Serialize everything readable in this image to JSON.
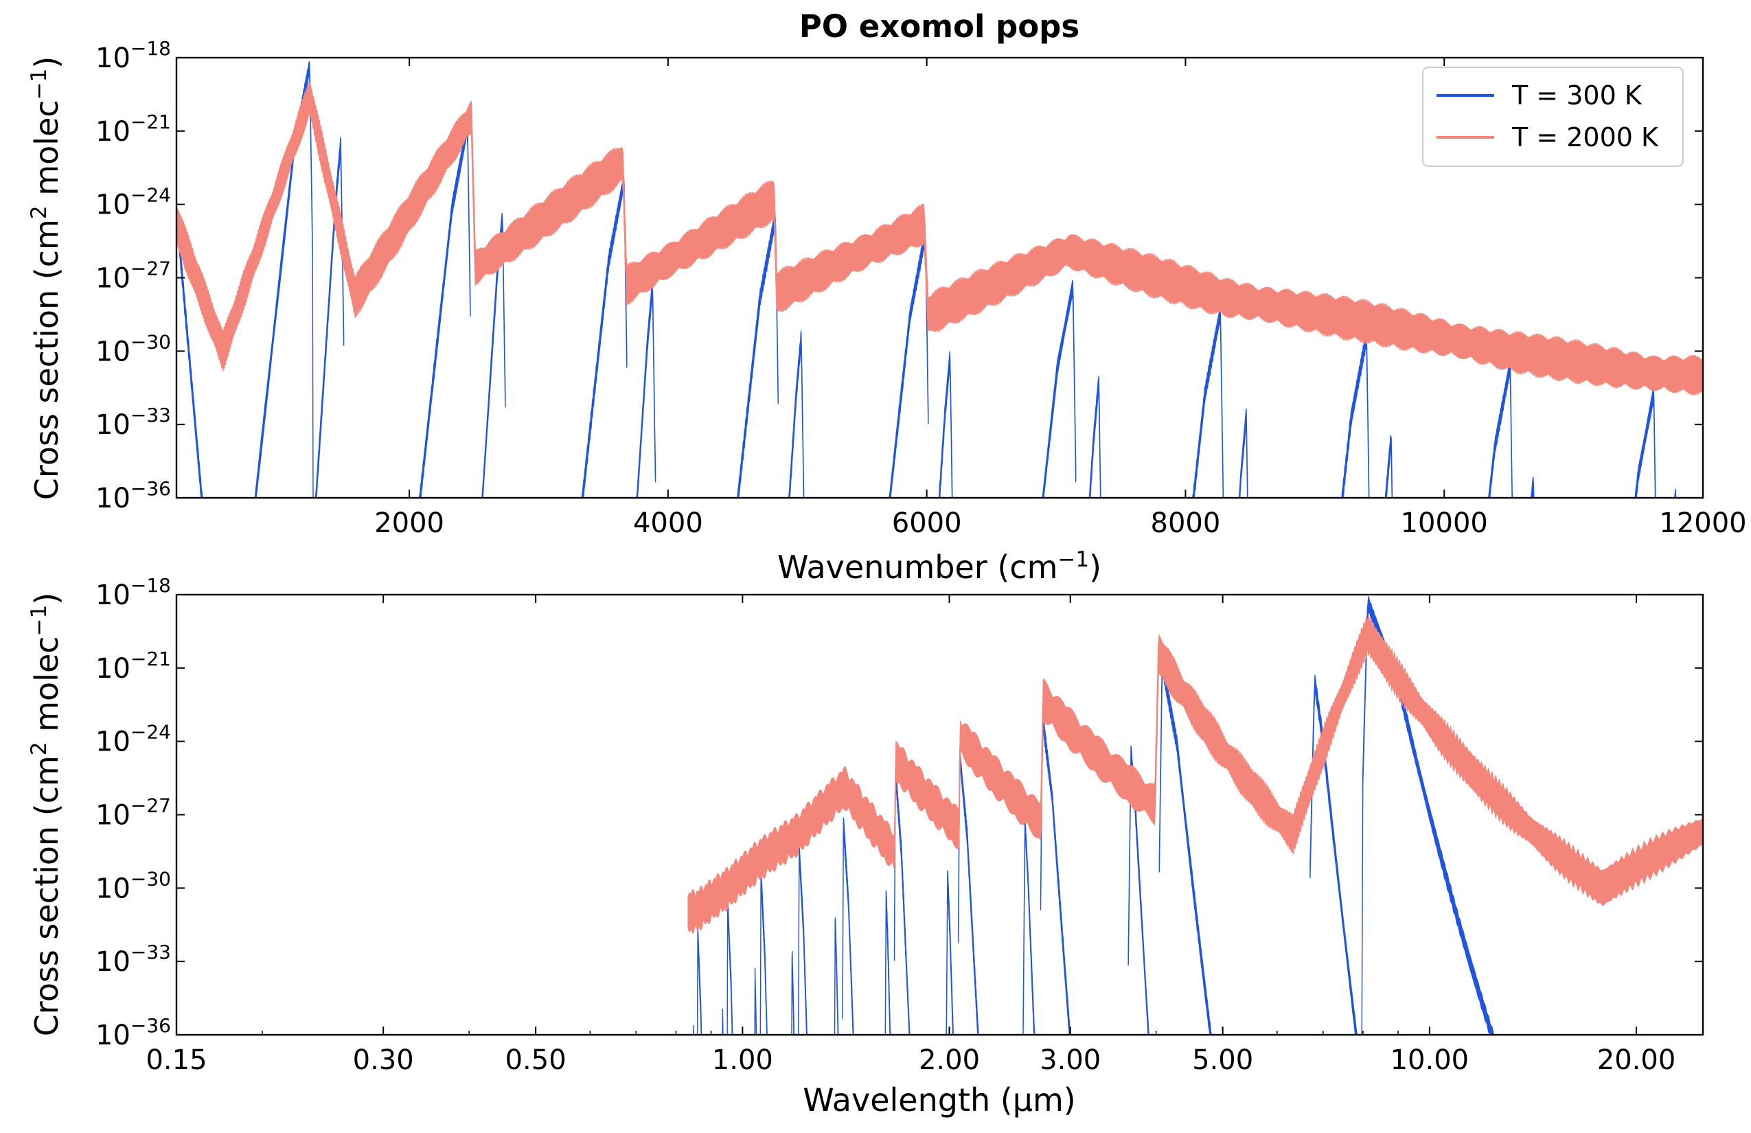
{
  "figure": {
    "title": "PO exomol pops"
  },
  "chart_data": [
    {
      "type": "line",
      "xlabel": "Wavenumber (cm",
      "xlabel_sup": "−1",
      "xlabel_tail": ")",
      "ylabel": "Cross section (cm",
      "ylabel_sup1": "2",
      "ylabel_mid": " molec",
      "ylabel_sup2": "−1",
      "ylabel_tail": ")",
      "xscale": "linear",
      "yscale": "log",
      "xlim": [
        200,
        12000
      ],
      "ylim_log10": [
        -36,
        -18
      ],
      "xticks": [
        2000,
        4000,
        6000,
        8000,
        10000,
        12000
      ],
      "xtick_labels": [
        "2000",
        "4000",
        "6000",
        "8000",
        "10000",
        "12000"
      ],
      "ytick_exponents": [
        -18,
        -21,
        -24,
        -27,
        -30,
        -33,
        -36
      ],
      "ytick_base": "10",
      "ytick_sups": [
        "−18",
        "−21",
        "−24",
        "−27",
        "−30",
        "−33",
        "−36"
      ],
      "legend": {
        "position": "upper right",
        "entries": [
          "T = 300 K",
          "T = 2000 K"
        ]
      },
      "series": [
        {
          "name": "T = 300 K",
          "color": "#1f55e0",
          "band_centers": [
            1230,
            2450,
            3660,
            4830,
            5990,
            7130,
            8270,
            9400,
            10510,
            11620
          ],
          "band_peak_log10": [
            -18.3,
            -20.8,
            -23.0,
            -24.5,
            -25.2,
            -27.3,
            -28.4,
            -29.4,
            -30.6,
            -31.7
          ],
          "hot_band_centers": [
            1470,
            2720,
            3880,
            5030,
            6180,
            7330,
            8470,
            9590,
            10690,
            11790
          ],
          "hot_band_peak_log10": [
            -21.5,
            -24.4,
            -27.3,
            -29.4,
            -30.2,
            -31.2,
            -32.6,
            -33.5,
            -35.2,
            -35.8
          ]
        },
        {
          "name": "T = 2000 K",
          "color": "#f4857a",
          "key_points_wavenumber": [
            200,
            560,
            1230,
            1580,
            2480,
            2510,
            3650,
            3680,
            4820,
            4840,
            5980,
            6010,
            7100,
            8300,
            9400,
            10500,
            11600,
            12000
          ],
          "key_points_log10": [
            -24.8,
            -30.0,
            -19.6,
            -27.8,
            -20.4,
            -26.6,
            -22.3,
            -27.3,
            -23.8,
            -27.6,
            -24.8,
            -28.5,
            -25.9,
            -27.8,
            -28.8,
            -30.0,
            -30.9,
            -31.0
          ]
        }
      ]
    },
    {
      "type": "line",
      "xlabel": "Wavelength (μm)",
      "ylabel": "Cross section (cm",
      "ylabel_sup1": "2",
      "ylabel_mid": " molec",
      "ylabel_sup2": "−1",
      "ylabel_tail": ")",
      "xscale": "log",
      "xlim": [
        0.15,
        25
      ],
      "ylim_log10": [
        -36,
        -18
      ],
      "xticks": [
        0.15,
        0.3,
        0.5,
        1.0,
        2.0,
        3.0,
        5.0,
        10.0,
        20.0
      ],
      "xtick_labels": [
        "0.15",
        "0.30",
        "0.50",
        "1.00",
        "2.00",
        "3.00",
        "5.00",
        "10.00",
        "20.00"
      ],
      "ytick_exponents": [
        -18,
        -21,
        -24,
        -27,
        -30,
        -33,
        -36
      ],
      "ytick_base": "10",
      "ytick_sups": [
        "−18",
        "−21",
        "−24",
        "−27",
        "−30",
        "−33",
        "−36"
      ],
      "series": [
        {
          "name": "T = 300 K",
          "color": "#1f55e0"
        },
        {
          "name": "T = 2000 K",
          "color": "#f4857a"
        }
      ]
    }
  ]
}
